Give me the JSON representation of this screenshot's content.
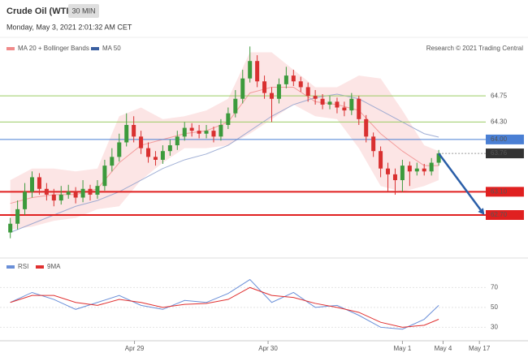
{
  "chart_data": [
    {
      "type": "candlestick",
      "title": "Crude Oil (WTI)",
      "timeframe": "30 MIN",
      "subtitle": "Monday, May 3, 2021 2:01:32 AM CET",
      "source": "Research © 2021 Trading Central",
      "xlim": [
        -0.3,
        65.7
      ],
      "ylim": [
        61.96,
        65.73
      ],
      "up_color": "#3c9a3c",
      "down_color": "#d93030",
      "open": [
        62.4,
        62.55,
        62.8,
        63.1,
        63.35,
        63.15,
        63.05,
        62.95,
        63.05,
        63.1,
        63.0,
        63.15,
        63.05,
        63.2,
        63.55,
        63.7,
        63.95,
        64.25,
        64.05,
        63.85,
        63.7,
        63.65,
        63.8,
        63.9,
        64.05,
        64.2,
        64.15,
        64.1,
        64.15,
        64.05,
        64.25,
        64.45,
        64.7,
        65.05,
        65.35,
        65.0,
        64.8,
        64.7,
        64.95,
        65.1,
        65.0,
        64.9,
        64.75,
        64.7,
        64.6,
        64.65,
        64.55,
        64.5,
        64.7,
        64.35,
        64.05,
        63.8,
        63.5,
        63.4,
        63.3,
        63.55,
        63.45,
        63.5,
        63.45,
        63.6
      ],
      "high": [
        62.65,
        62.95,
        63.25,
        63.45,
        63.42,
        63.25,
        63.15,
        63.2,
        63.22,
        63.18,
        63.3,
        63.22,
        63.3,
        63.65,
        63.85,
        64.1,
        64.45,
        64.4,
        64.15,
        63.95,
        63.8,
        63.9,
        64.0,
        64.15,
        64.3,
        64.28,
        64.25,
        64.25,
        64.22,
        64.35,
        64.55,
        64.85,
        65.2,
        65.6,
        65.45,
        65.1,
        64.9,
        65.05,
        65.25,
        65.2,
        65.08,
        64.98,
        64.85,
        64.78,
        64.75,
        64.72,
        64.65,
        64.8,
        64.75,
        64.42,
        64.12,
        63.88,
        63.6,
        63.5,
        63.65,
        63.62,
        63.6,
        63.58,
        63.68,
        63.82
      ],
      "low": [
        62.3,
        62.45,
        62.7,
        63.0,
        63.05,
        62.95,
        62.85,
        62.88,
        62.98,
        62.9,
        62.92,
        62.95,
        62.98,
        63.12,
        63.45,
        63.62,
        63.88,
        63.95,
        63.75,
        63.6,
        63.55,
        63.58,
        63.72,
        63.82,
        63.98,
        64.05,
        64.02,
        64.02,
        63.95,
        63.98,
        64.18,
        64.38,
        64.62,
        64.98,
        64.9,
        64.7,
        64.3,
        64.62,
        64.88,
        64.92,
        64.82,
        64.65,
        64.6,
        64.52,
        64.52,
        64.45,
        64.4,
        64.42,
        64.25,
        63.95,
        63.7,
        63.35,
        63.1,
        63.05,
        63.1,
        63.2,
        63.38,
        63.38,
        63.38,
        63.55
      ],
      "close": [
        62.55,
        62.8,
        63.1,
        63.35,
        63.15,
        63.05,
        62.95,
        63.05,
        63.1,
        63.0,
        63.15,
        63.05,
        63.2,
        63.55,
        63.7,
        63.95,
        64.25,
        64.05,
        63.85,
        63.7,
        63.65,
        63.8,
        63.9,
        64.05,
        64.2,
        64.15,
        64.1,
        64.15,
        64.05,
        64.25,
        64.45,
        64.7,
        65.05,
        65.35,
        65.0,
        64.8,
        64.7,
        64.95,
        65.1,
        65.0,
        64.9,
        64.75,
        64.7,
        64.6,
        64.65,
        64.55,
        64.5,
        64.7,
        64.35,
        64.05,
        63.8,
        63.5,
        63.4,
        63.3,
        63.55,
        63.45,
        63.5,
        63.45,
        63.6,
        63.76
      ],
      "series": [
        {
          "name": "MA 20 + Bollinger Bands",
          "color": "#f08a8a",
          "x": [
            0,
            3,
            6,
            9,
            12,
            15,
            18,
            21,
            24,
            27,
            30,
            33,
            36,
            39,
            42,
            45,
            48,
            51,
            54,
            57,
            59
          ],
          "upper": [
            63.3,
            63.5,
            63.5,
            63.45,
            63.5,
            64.4,
            64.55,
            64.35,
            64.4,
            64.5,
            64.7,
            65.5,
            65.5,
            65.2,
            64.9,
            64.9,
            65.1,
            65.05,
            64.5,
            63.9,
            63.8
          ],
          "values": [
            62.9,
            63.0,
            63.05,
            63.05,
            63.15,
            63.6,
            63.9,
            64.0,
            64.1,
            64.15,
            64.3,
            64.8,
            64.9,
            64.9,
            64.65,
            64.6,
            64.5,
            64.1,
            63.8,
            63.55,
            63.55
          ],
          "lower": [
            62.45,
            62.5,
            62.6,
            62.65,
            62.8,
            62.85,
            63.3,
            63.6,
            63.85,
            63.85,
            63.9,
            64.1,
            64.35,
            64.6,
            64.4,
            64.35,
            63.85,
            63.2,
            63.1,
            63.2,
            63.3
          ]
        },
        {
          "name": "MA 50",
          "color": "#3a5fa0",
          "line_color": "#8a9ccc",
          "x": [
            0,
            3,
            6,
            9,
            12,
            15,
            18,
            21,
            24,
            27,
            30,
            33,
            36,
            39,
            42,
            45,
            48,
            51,
            54,
            57,
            59
          ],
          "values": [
            62.4,
            62.55,
            62.7,
            62.85,
            62.95,
            63.1,
            63.3,
            63.5,
            63.65,
            63.75,
            63.9,
            64.15,
            64.4,
            64.6,
            64.72,
            64.78,
            64.7,
            64.5,
            64.3,
            64.1,
            64.04
          ]
        }
      ],
      "levels": [
        {
          "value": 64.75,
          "label": "64.75",
          "color": "#9ccc65",
          "style": "text",
          "line": "solid",
          "width": 1
        },
        {
          "value": 64.3,
          "label": "64.30",
          "color": "#9ccc65",
          "style": "text",
          "line": "solid",
          "width": 1
        },
        {
          "value": 64.0,
          "label": "64.00",
          "color": "#4a7fd4",
          "style": "box",
          "line": "solid",
          "width": 1
        },
        {
          "value": 63.76,
          "label": "63.76",
          "color": "#333333",
          "style": "box",
          "line": "dotted",
          "width": 1
        },
        {
          "value": 63.1,
          "label": "63.10",
          "color": "#e02020",
          "style": "box",
          "line": "solid",
          "width": 2
        },
        {
          "value": 62.7,
          "label": "62.70",
          "color": "#e02020",
          "style": "box",
          "line": "solid",
          "width": 2
        }
      ],
      "arrow": {
        "color": "#2a5ea8",
        "from": {
          "x": 59,
          "y": 63.76
        },
        "to": {
          "x": 65.3,
          "y": 62.7
        }
      }
    },
    {
      "type": "line",
      "xlim": [
        -0.3,
        65.7
      ],
      "ylim": [
        18,
        85
      ],
      "yticks": [
        30,
        50,
        70
      ],
      "grid": true,
      "xticks": [
        {
          "value": 17.1,
          "label": "Apr 29"
        },
        {
          "value": 35.5,
          "label": "Apr 30"
        },
        {
          "value": 54,
          "label": "May 1"
        },
        {
          "value": 59.6,
          "label": "May 4"
        },
        {
          "value": 64.6,
          "label": "May 17"
        }
      ],
      "series": [
        {
          "name": "RSI",
          "color": "#6a8fd8",
          "x": [
            0,
            3,
            6,
            9,
            12,
            15,
            18,
            21,
            24,
            27,
            30,
            33,
            36,
            39,
            42,
            45,
            48,
            51,
            54,
            57,
            59
          ],
          "values": [
            55,
            65,
            58,
            48,
            55,
            62,
            52,
            48,
            57,
            55,
            64,
            78,
            55,
            65,
            50,
            52,
            42,
            30,
            28,
            38,
            52
          ]
        },
        {
          "name": "9MA",
          "color": "#e03030",
          "x": [
            0,
            3,
            6,
            9,
            12,
            15,
            18,
            21,
            24,
            27,
            30,
            33,
            36,
            39,
            42,
            45,
            48,
            51,
            54,
            57,
            59
          ],
          "values": [
            55,
            62,
            62,
            55,
            52,
            58,
            55,
            50,
            53,
            54,
            58,
            70,
            62,
            60,
            54,
            50,
            45,
            35,
            30,
            32,
            38
          ]
        }
      ]
    }
  ]
}
